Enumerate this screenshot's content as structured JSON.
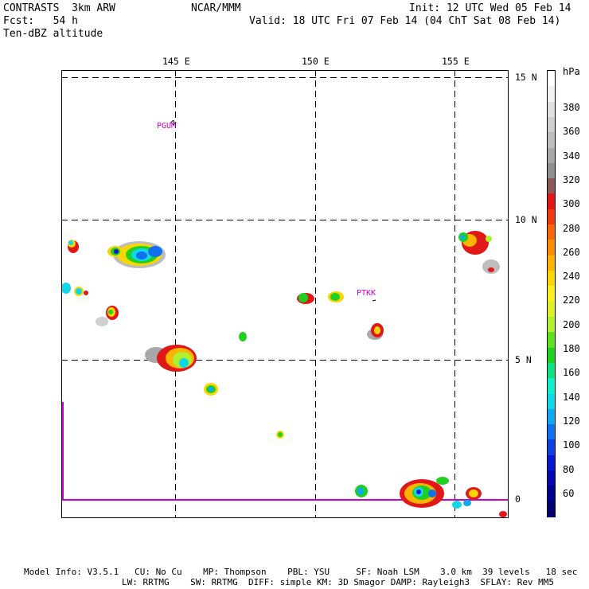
{
  "header": {
    "model": "CONTRASTS  3km ARW",
    "org": "NCAR/MMM",
    "init": "Init: 12 UTC Wed 05 Feb 14",
    "fcst": "Fcst:   54 h",
    "valid": "Valid: 18 UTC Fri 07 Feb 14 (04 ChT Sat 08 Feb 14)",
    "field": "Ten-dBZ altitude"
  },
  "map": {
    "lon_labels": [
      "145 E",
      "150 E",
      "155 E"
    ],
    "lat_labels": [
      "15 N",
      "10 N",
      "5 N",
      "0"
    ],
    "stations": [
      "PGUM",
      "PTKK"
    ]
  },
  "colorbar": {
    "unit": "hPa",
    "labels": [
      "380",
      "360",
      "340",
      "320",
      "300",
      "280",
      "260",
      "240",
      "220",
      "200",
      "180",
      "160",
      "140",
      "120",
      "100",
      "80",
      "60"
    ],
    "colors": [
      "#ffffff",
      "#f2f2f2",
      "#e0e0e0",
      "#cfcfcf",
      "#bdbdbd",
      "#a8a8a8",
      "#909090",
      "#8c5a5a",
      "#e01818",
      "#f03a10",
      "#f86808",
      "#fc8c00",
      "#fcb400",
      "#fcd600",
      "#f8f020",
      "#e0f028",
      "#b0f030",
      "#60e020",
      "#20d020",
      "#10e080",
      "#10f0c8",
      "#10d8e8",
      "#10a8f0",
      "#1070f0",
      "#1040e0",
      "#0818d0",
      "#0808b0",
      "#000090",
      "#000070"
    ],
    "primary": "#cc00cc"
  },
  "footer": {
    "line1": "Model Info: V3.5.1   CU: No Cu    MP: Thompson    PBL: YSU     SF: Noah LSM    3.0 km  39 levels   18 sec",
    "line2": "LW: RRTMG    SW: RRTMG  DIFF: simple KM: 3D Smagor DAMP: Rayleigh3  SFLAY: Rev MM5"
  }
}
